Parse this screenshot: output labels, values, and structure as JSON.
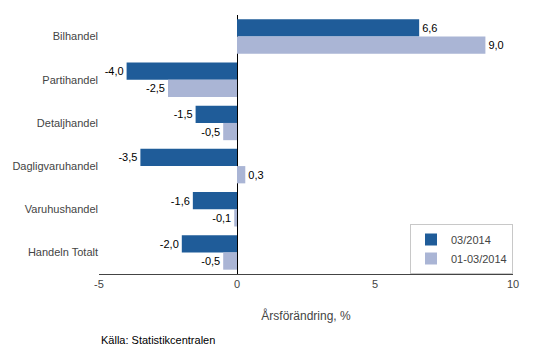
{
  "chart_data": {
    "type": "bar",
    "orientation": "horizontal",
    "categories": [
      "Bilhandel",
      "Partihandel",
      "Detaljhandel",
      "Dagligvaruhandel",
      "Varuhushandel",
      "Handeln Totalt"
    ],
    "series": [
      {
        "name": "03/2014",
        "color": "#1f5c99",
        "values": [
          6.6,
          -4.0,
          -1.5,
          -3.5,
          -1.6,
          -2.0
        ],
        "value_labels": [
          "6,6",
          "-4,0",
          "-1,5",
          "-3,5",
          "-1,6",
          "-2,0"
        ]
      },
      {
        "name": "01-03/2014",
        "color": "#aab5d5",
        "values": [
          9.0,
          -2.5,
          -0.5,
          0.3,
          -0.1,
          -0.5
        ],
        "value_labels": [
          "9,0",
          "-2,5",
          "-0,5",
          "0,3",
          "-0,1",
          "-0,5"
        ]
      }
    ],
    "xlabel": "Årsförändring, %",
    "xlim": [
      -5,
      10
    ],
    "xticks": [
      -5,
      0,
      5,
      10
    ],
    "source": "Källa: Statistikcentralen",
    "data_labels": true,
    "legend": "lower right",
    "grid": false
  }
}
